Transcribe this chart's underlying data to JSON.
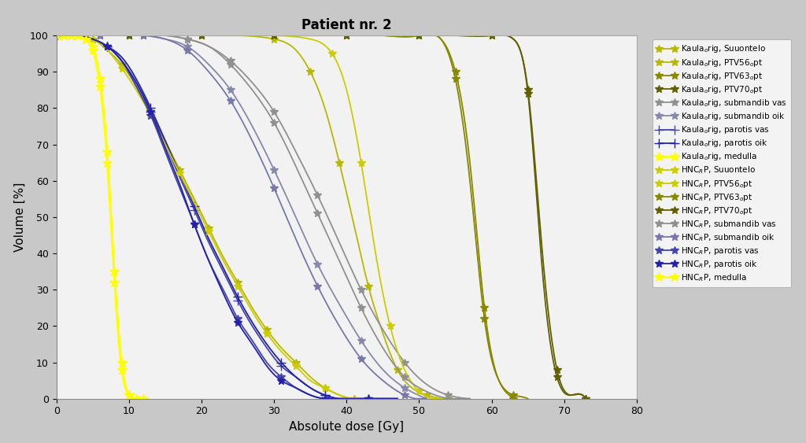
{
  "title": "Patient nr. 2",
  "xlabel": "Absolute dose [Gy]",
  "ylabel": "Volume [%]",
  "xlim": [
    0,
    80
  ],
  "ylim": [
    0,
    100
  ],
  "xticks": [
    0,
    10,
    20,
    30,
    40,
    50,
    60,
    70,
    80
  ],
  "yticks": [
    0,
    10,
    20,
    30,
    40,
    50,
    60,
    70,
    80,
    90,
    100
  ],
  "outer_bg": "#d3d3d3",
  "plot_bg": "#f0f0f0",
  "legend_labels": [
    "Kaula$_o$rig, Suuontelo",
    "Kaula$_o$rig, PTV56$_o$pt",
    "Kaula$_o$rig, PTV63$_o$pt",
    "Kaula$_o$rig, PTV70$_o$pt",
    "Kaula$_o$rig, submandib vas",
    "Kaula$_o$rig, submandib oik",
    "Kaula$_o$rig, parotis vas",
    "Kaula$_o$rig, parotis oik",
    "Kaula$_o$rig, medulla",
    "HNC$_R$P, Suuontelo",
    "HNC$_R$P, PTV56$_o$pt",
    "HNC$_R$P, PTV63$_o$pt",
    "HNC$_R$P, PTV70$_o$pt",
    "HNC$_R$P, submandib vas",
    "HNC$_R$P, submandib oik",
    "HNC$_R$P, parotis vas",
    "HNC$_R$P, parotis oik",
    "HNC$_R$P, medulla"
  ],
  "curves": [
    {
      "label_idx": 0,
      "color": "#b8b800",
      "marker": "*",
      "ms": 7,
      "lw": 1.3,
      "x": [
        0,
        3,
        5,
        7,
        9,
        11,
        13,
        15,
        17,
        19,
        21,
        23,
        25,
        27,
        29,
        31,
        33,
        35,
        37,
        39,
        41,
        43
      ],
      "y": [
        100,
        100,
        99,
        96,
        92,
        86,
        79,
        71,
        63,
        55,
        47,
        39,
        32,
        25,
        19,
        14,
        10,
        6,
        3,
        1,
        0,
        0
      ]
    },
    {
      "label_idx": 1,
      "color": "#b8b800",
      "marker": "*",
      "ms": 7,
      "lw": 1.3,
      "x": [
        0,
        5,
        10,
        15,
        20,
        25,
        30,
        33,
        35,
        37,
        39,
        41,
        43,
        45,
        47,
        49,
        51,
        53
      ],
      "y": [
        100,
        100,
        100,
        100,
        100,
        100,
        99,
        96,
        90,
        80,
        65,
        48,
        31,
        18,
        8,
        3,
        1,
        0
      ]
    },
    {
      "label_idx": 2,
      "color": "#888800",
      "marker": "*",
      "ms": 7,
      "lw": 1.3,
      "x": [
        0,
        5,
        10,
        15,
        20,
        25,
        30,
        35,
        40,
        45,
        50,
        53,
        55,
        57,
        59,
        61,
        63
      ],
      "y": [
        100,
        100,
        100,
        100,
        100,
        100,
        100,
        100,
        100,
        100,
        100,
        99,
        90,
        65,
        25,
        5,
        0
      ]
    },
    {
      "label_idx": 3,
      "color": "#606000",
      "marker": "*",
      "ms": 7,
      "lw": 1.3,
      "x": [
        0,
        5,
        10,
        15,
        20,
        25,
        30,
        35,
        40,
        45,
        50,
        55,
        60,
        63,
        65,
        67,
        69,
        71,
        73
      ],
      "y": [
        100,
        100,
        100,
        100,
        100,
        100,
        100,
        100,
        100,
        100,
        100,
        100,
        100,
        99,
        85,
        40,
        8,
        1,
        0
      ]
    },
    {
      "label_idx": 4,
      "color": "#909090",
      "marker": "*",
      "ms": 7,
      "lw": 1.3,
      "x": [
        0,
        3,
        6,
        9,
        12,
        15,
        18,
        21,
        24,
        27,
        30,
        33,
        36,
        39,
        42,
        45,
        48,
        51,
        54,
        57
      ],
      "y": [
        100,
        100,
        100,
        100,
        100,
        100,
        99,
        97,
        93,
        87,
        79,
        68,
        56,
        43,
        30,
        19,
        10,
        4,
        1,
        0
      ]
    },
    {
      "label_idx": 5,
      "color": "#8888aa",
      "marker": "*",
      "ms": 7,
      "lw": 1.3,
      "x": [
        0,
        3,
        6,
        9,
        12,
        15,
        18,
        21,
        24,
        27,
        30,
        33,
        36,
        39,
        42,
        45,
        48,
        51
      ],
      "y": [
        100,
        100,
        100,
        100,
        100,
        99,
        97,
        92,
        85,
        75,
        63,
        50,
        37,
        26,
        16,
        8,
        3,
        0
      ]
    },
    {
      "label_idx": 6,
      "color": "#4444aa",
      "marker": "+",
      "ms": 8,
      "lw": 1.3,
      "x": [
        0,
        3,
        5,
        7,
        9,
        11,
        13,
        15,
        17,
        19,
        21,
        23,
        25,
        27,
        29,
        31,
        33,
        35,
        37,
        39,
        41,
        43,
        45,
        47
      ],
      "y": [
        100,
        100,
        99,
        97,
        93,
        87,
        79,
        70,
        61,
        52,
        43,
        35,
        27,
        20,
        14,
        9,
        6,
        3,
        1,
        0,
        0,
        0,
        0,
        0
      ]
    },
    {
      "label_idx": 7,
      "color": "#2222aa",
      "marker": "+",
      "ms": 8,
      "lw": 1.3,
      "x": [
        0,
        3,
        5,
        7,
        9,
        11,
        13,
        15,
        17,
        19,
        21,
        23,
        25,
        27,
        29,
        31,
        33,
        35,
        37,
        39,
        41,
        43,
        45,
        47
      ],
      "y": [
        100,
        100,
        99,
        97,
        94,
        88,
        80,
        71,
        62,
        53,
        44,
        36,
        28,
        21,
        15,
        10,
        6,
        3,
        1,
        0,
        0,
        0,
        0,
        0
      ]
    },
    {
      "label_idx": 8,
      "color": "#ffff00",
      "marker": "*",
      "ms": 9,
      "lw": 1.8,
      "x": [
        0,
        1,
        2,
        3,
        4,
        5,
        6,
        7,
        8,
        9,
        10,
        11,
        12
      ],
      "y": [
        100,
        100,
        100,
        100,
        99,
        96,
        86,
        65,
        32,
        8,
        1,
        0,
        0
      ]
    },
    {
      "label_idx": 9,
      "color": "#cccc00",
      "marker": "*",
      "ms": 7,
      "lw": 1.3,
      "x": [
        0,
        3,
        5,
        7,
        9,
        11,
        13,
        15,
        17,
        19,
        21,
        23,
        25,
        27,
        29,
        31,
        33,
        35,
        37,
        39,
        41,
        43
      ],
      "y": [
        100,
        100,
        99,
        96,
        91,
        85,
        78,
        70,
        62,
        54,
        46,
        38,
        31,
        24,
        18,
        13,
        9,
        5,
        3,
        1,
        0,
        0
      ]
    },
    {
      "label_idx": 10,
      "color": "#cccc00",
      "marker": "*",
      "ms": 7,
      "lw": 1.3,
      "x": [
        0,
        5,
        10,
        15,
        20,
        25,
        30,
        35,
        38,
        40,
        42,
        44,
        46,
        48,
        50,
        52,
        54
      ],
      "y": [
        100,
        100,
        100,
        100,
        100,
        100,
        100,
        99,
        95,
        85,
        65,
        40,
        20,
        8,
        2,
        0,
        0
      ]
    },
    {
      "label_idx": 11,
      "color": "#888800",
      "marker": "*",
      "ms": 7,
      "lw": 1.3,
      "x": [
        0,
        5,
        10,
        15,
        20,
        25,
        30,
        35,
        40,
        45,
        50,
        53,
        55,
        57,
        59,
        61,
        63,
        65
      ],
      "y": [
        100,
        100,
        100,
        100,
        100,
        100,
        100,
        100,
        100,
        100,
        100,
        99,
        88,
        60,
        22,
        5,
        1,
        0
      ]
    },
    {
      "label_idx": 12,
      "color": "#606000",
      "marker": "*",
      "ms": 7,
      "lw": 1.3,
      "x": [
        0,
        5,
        10,
        15,
        20,
        25,
        30,
        35,
        40,
        45,
        50,
        55,
        60,
        63,
        65,
        67,
        69,
        71,
        73
      ],
      "y": [
        100,
        100,
        100,
        100,
        100,
        100,
        100,
        100,
        100,
        100,
        100,
        100,
        100,
        99,
        84,
        35,
        6,
        1,
        0
      ]
    },
    {
      "label_idx": 13,
      "color": "#909090",
      "marker": "*",
      "ms": 7,
      "lw": 1.3,
      "x": [
        0,
        3,
        6,
        9,
        12,
        15,
        18,
        21,
        24,
        27,
        30,
        33,
        36,
        39,
        42,
        45,
        48,
        51,
        54,
        57
      ],
      "y": [
        100,
        100,
        100,
        100,
        100,
        100,
        99,
        97,
        92,
        85,
        76,
        64,
        51,
        38,
        25,
        14,
        6,
        2,
        0,
        0
      ]
    },
    {
      "label_idx": 14,
      "color": "#7777aa",
      "marker": "*",
      "ms": 7,
      "lw": 1.3,
      "x": [
        0,
        3,
        6,
        9,
        12,
        15,
        18,
        21,
        24,
        27,
        30,
        33,
        36,
        39,
        42,
        45,
        48,
        51
      ],
      "y": [
        100,
        100,
        100,
        100,
        100,
        99,
        96,
        90,
        82,
        71,
        58,
        44,
        31,
        20,
        11,
        5,
        1,
        0
      ]
    },
    {
      "label_idx": 15,
      "color": "#4444aa",
      "marker": "*",
      "ms": 7,
      "lw": 1.3,
      "x": [
        0,
        3,
        5,
        7,
        9,
        11,
        13,
        15,
        17,
        19,
        21,
        23,
        25,
        27,
        29,
        31,
        33,
        35,
        37,
        39,
        41,
        43,
        45,
        47
      ],
      "y": [
        100,
        100,
        99,
        97,
        93,
        86,
        78,
        68,
        58,
        48,
        38,
        30,
        22,
        16,
        10,
        6,
        3,
        1,
        0,
        0,
        0,
        0,
        0,
        0
      ]
    },
    {
      "label_idx": 16,
      "color": "#2222aa",
      "marker": "*",
      "ms": 7,
      "lw": 1.3,
      "x": [
        0,
        3,
        5,
        7,
        9,
        11,
        13,
        15,
        17,
        19,
        21,
        23,
        25,
        27,
        29,
        31,
        33,
        35,
        37,
        39,
        41,
        43,
        45,
        47
      ],
      "y": [
        100,
        100,
        99,
        97,
        93,
        87,
        79,
        69,
        59,
        48,
        38,
        29,
        21,
        15,
        9,
        5,
        3,
        1,
        0,
        0,
        0,
        0,
        0,
        0
      ]
    },
    {
      "label_idx": 17,
      "color": "#ffff00",
      "marker": "*",
      "ms": 9,
      "lw": 1.8,
      "x": [
        0,
        1,
        2,
        3,
        4,
        5,
        6,
        7,
        8,
        9,
        10,
        11,
        12
      ],
      "y": [
        100,
        100,
        100,
        100,
        99,
        97,
        88,
        68,
        35,
        10,
        1,
        0,
        0
      ]
    }
  ]
}
